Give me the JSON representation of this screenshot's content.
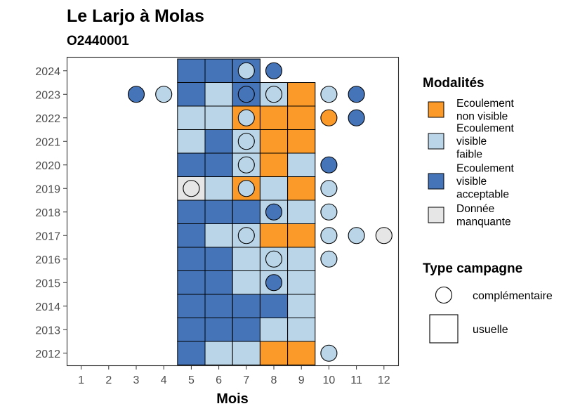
{
  "chart_data": {
    "type": "heatmap",
    "title": "Le Larjo à Molas",
    "subtitle": "O2440001",
    "xlabel": "Mois",
    "ylabel": "",
    "x_ticks": [
      1,
      2,
      3,
      4,
      5,
      6,
      7,
      8,
      9,
      10,
      11,
      12
    ],
    "y_ticks": [
      2012,
      2013,
      2014,
      2015,
      2016,
      2017,
      2018,
      2019,
      2020,
      2021,
      2022,
      2023,
      2024
    ],
    "legend_position": "right",
    "legend_modalites": {
      "title": "Modalités",
      "items": [
        {
          "key": "nv",
          "label": [
            "Ecoulement",
            "non visible"
          ],
          "color": "#fb9a29"
        },
        {
          "key": "vf",
          "label": [
            "Ecoulement",
            "visible",
            "faible"
          ],
          "color": "#bad5e7"
        },
        {
          "key": "va",
          "label": [
            "Ecoulement",
            "visible",
            "acceptable"
          ],
          "color": "#4574b8"
        },
        {
          "key": "dm",
          "label": [
            "Donnée",
            "manquante"
          ],
          "color": "#e6e6e6"
        }
      ]
    },
    "legend_type": {
      "title": "Type campagne",
      "items": [
        {
          "key": "comp",
          "shape": "circle",
          "label": "complémentaire"
        },
        {
          "key": "usu",
          "shape": "square",
          "label": "usuelle"
        }
      ]
    },
    "usuelle": [
      {
        "year": 2012,
        "month": 5,
        "v": "va"
      },
      {
        "year": 2012,
        "month": 6,
        "v": "vf"
      },
      {
        "year": 2012,
        "month": 7,
        "v": "vf"
      },
      {
        "year": 2012,
        "month": 8,
        "v": "nv"
      },
      {
        "year": 2012,
        "month": 9,
        "v": "nv"
      },
      {
        "year": 2013,
        "month": 5,
        "v": "va"
      },
      {
        "year": 2013,
        "month": 6,
        "v": "va"
      },
      {
        "year": 2013,
        "month": 7,
        "v": "va"
      },
      {
        "year": 2013,
        "month": 8,
        "v": "vf"
      },
      {
        "year": 2013,
        "month": 9,
        "v": "vf"
      },
      {
        "year": 2014,
        "month": 5,
        "v": "va"
      },
      {
        "year": 2014,
        "month": 6,
        "v": "va"
      },
      {
        "year": 2014,
        "month": 7,
        "v": "va"
      },
      {
        "year": 2014,
        "month": 8,
        "v": "va"
      },
      {
        "year": 2014,
        "month": 9,
        "v": "vf"
      },
      {
        "year": 2015,
        "month": 5,
        "v": "va"
      },
      {
        "year": 2015,
        "month": 6,
        "v": "va"
      },
      {
        "year": 2015,
        "month": 7,
        "v": "vf"
      },
      {
        "year": 2015,
        "month": 8,
        "v": "vf"
      },
      {
        "year": 2015,
        "month": 9,
        "v": "vf"
      },
      {
        "year": 2016,
        "month": 5,
        "v": "va"
      },
      {
        "year": 2016,
        "month": 6,
        "v": "va"
      },
      {
        "year": 2016,
        "month": 7,
        "v": "vf"
      },
      {
        "year": 2016,
        "month": 8,
        "v": "vf"
      },
      {
        "year": 2016,
        "month": 9,
        "v": "vf"
      },
      {
        "year": 2017,
        "month": 5,
        "v": "va"
      },
      {
        "year": 2017,
        "month": 6,
        "v": "vf"
      },
      {
        "year": 2017,
        "month": 7,
        "v": "vf"
      },
      {
        "year": 2017,
        "month": 8,
        "v": "nv"
      },
      {
        "year": 2017,
        "month": 9,
        "v": "nv"
      },
      {
        "year": 2018,
        "month": 5,
        "v": "va"
      },
      {
        "year": 2018,
        "month": 6,
        "v": "va"
      },
      {
        "year": 2018,
        "month": 7,
        "v": "va"
      },
      {
        "year": 2018,
        "month": 8,
        "v": "vf"
      },
      {
        "year": 2018,
        "month": 9,
        "v": "vf"
      },
      {
        "year": 2019,
        "month": 5,
        "v": "dm"
      },
      {
        "year": 2019,
        "month": 6,
        "v": "vf"
      },
      {
        "year": 2019,
        "month": 7,
        "v": "nv"
      },
      {
        "year": 2019,
        "month": 8,
        "v": "vf"
      },
      {
        "year": 2019,
        "month": 9,
        "v": "nv"
      },
      {
        "year": 2020,
        "month": 5,
        "v": "va"
      },
      {
        "year": 2020,
        "month": 6,
        "v": "va"
      },
      {
        "year": 2020,
        "month": 7,
        "v": "vf"
      },
      {
        "year": 2020,
        "month": 8,
        "v": "nv"
      },
      {
        "year": 2020,
        "month": 9,
        "v": "vf"
      },
      {
        "year": 2021,
        "month": 5,
        "v": "vf"
      },
      {
        "year": 2021,
        "month": 6,
        "v": "va"
      },
      {
        "year": 2021,
        "month": 7,
        "v": "vf"
      },
      {
        "year": 2021,
        "month": 8,
        "v": "nv"
      },
      {
        "year": 2021,
        "month": 9,
        "v": "nv"
      },
      {
        "year": 2022,
        "month": 5,
        "v": "vf"
      },
      {
        "year": 2022,
        "month": 6,
        "v": "vf"
      },
      {
        "year": 2022,
        "month": 7,
        "v": "nv"
      },
      {
        "year": 2022,
        "month": 8,
        "v": "nv"
      },
      {
        "year": 2022,
        "month": 9,
        "v": "nv"
      },
      {
        "year": 2023,
        "month": 5,
        "v": "va"
      },
      {
        "year": 2023,
        "month": 6,
        "v": "vf"
      },
      {
        "year": 2023,
        "month": 7,
        "v": "va"
      },
      {
        "year": 2023,
        "month": 8,
        "v": "vf"
      },
      {
        "year": 2023,
        "month": 9,
        "v": "nv"
      },
      {
        "year": 2024,
        "month": 5,
        "v": "va"
      },
      {
        "year": 2024,
        "month": 6,
        "v": "va"
      },
      {
        "year": 2024,
        "month": 7,
        "v": "va"
      }
    ],
    "complementaire": [
      {
        "year": 2012,
        "month": 10,
        "v": "vf"
      },
      {
        "year": 2015,
        "month": 8,
        "v": "va"
      },
      {
        "year": 2016,
        "month": 8,
        "v": "vf"
      },
      {
        "year": 2016,
        "month": 10,
        "v": "vf"
      },
      {
        "year": 2017,
        "month": 7,
        "v": "vf"
      },
      {
        "year": 2017,
        "month": 10,
        "v": "vf"
      },
      {
        "year": 2017,
        "month": 11,
        "v": "vf"
      },
      {
        "year": 2017,
        "month": 12,
        "v": "dm"
      },
      {
        "year": 2018,
        "month": 8,
        "v": "va"
      },
      {
        "year": 2018,
        "month": 10,
        "v": "vf"
      },
      {
        "year": 2019,
        "month": 5,
        "v": "dm"
      },
      {
        "year": 2019,
        "month": 7,
        "v": "vf"
      },
      {
        "year": 2019,
        "month": 10,
        "v": "vf"
      },
      {
        "year": 2020,
        "month": 7,
        "v": "vf"
      },
      {
        "year": 2020,
        "month": 10,
        "v": "va"
      },
      {
        "year": 2021,
        "month": 7,
        "v": "vf"
      },
      {
        "year": 2022,
        "month": 7,
        "v": "vf"
      },
      {
        "year": 2022,
        "month": 10,
        "v": "nv"
      },
      {
        "year": 2022,
        "month": 11,
        "v": "va"
      },
      {
        "year": 2023,
        "month": 3,
        "v": "va"
      },
      {
        "year": 2023,
        "month": 4,
        "v": "vf"
      },
      {
        "year": 2023,
        "month": 7,
        "v": "va"
      },
      {
        "year": 2023,
        "month": 8,
        "v": "vf"
      },
      {
        "year": 2023,
        "month": 10,
        "v": "vf"
      },
      {
        "year": 2023,
        "month": 11,
        "v": "va"
      },
      {
        "year": 2024,
        "month": 7,
        "v": "vf"
      },
      {
        "year": 2024,
        "month": 8,
        "v": "va"
      }
    ]
  }
}
